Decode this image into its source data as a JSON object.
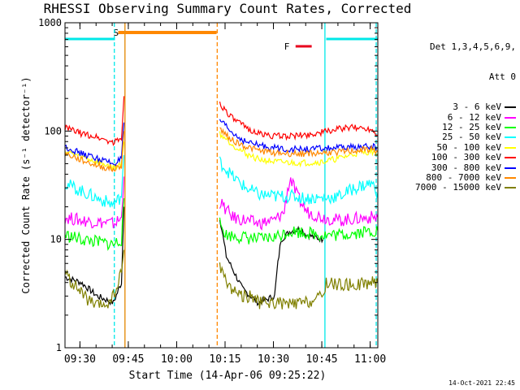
{
  "chart_data": {
    "type": "line",
    "title": "RHESSI Observing Summary Count Rates, Corrected",
    "xlabel": "Start Time (14-Apr-06 09:25:22)",
    "ylabel": "Corrected Count Rate (s⁻¹ detector⁻¹)",
    "x_unit": "minutes after 09:25:22",
    "xlim": [
      0,
      97
    ],
    "ylim": [
      1,
      1000
    ],
    "yscale": "log",
    "x_ticks": [
      "09:30",
      "09:45",
      "10:00",
      "10:15",
      "10:30",
      "10:45",
      "11:00"
    ],
    "y_ticks": [
      "1",
      "10",
      "100",
      "1000"
    ],
    "detectors": [
      "Det 1,3,4,5,6,9,",
      "Att 0"
    ],
    "flags": {
      "S": {
        "label": "S",
        "color": "#ff8800",
        "start": 16.5,
        "end": 47.0
      },
      "F": {
        "label": "F",
        "color": "#e8001c",
        "start": 71.5,
        "end": 76.5
      },
      "eclipse": {
        "color": "#00e8e8",
        "segments": [
          [
            0,
            15.5
          ],
          [
            81,
            97
          ]
        ]
      }
    },
    "vertical_lines": [
      {
        "x": 15.3,
        "color": "#00e8e8",
        "style": "dashed"
      },
      {
        "x": 18.6,
        "color": "#00e8e8",
        "style": "solid"
      },
      {
        "x": 18.6,
        "color": "#ff8800",
        "style": "solid"
      },
      {
        "x": 47.2,
        "color": "#ff8800",
        "style": "dashed"
      },
      {
        "x": 80.6,
        "color": "#00e8e8",
        "style": "solid"
      },
      {
        "x": 96.5,
        "color": "#00e8e8",
        "style": "dashed"
      }
    ],
    "series": [
      {
        "name": "3 - 6 keV",
        "color": "#000000",
        "x": [
          0,
          5,
          10,
          15,
          17.5,
          18.3,
          48,
          50,
          55,
          60,
          65,
          66,
          67,
          70,
          73,
          75,
          80
        ],
        "y": [
          4.5,
          4,
          3,
          2.6,
          4,
          20,
          16,
          7,
          3.5,
          2.6,
          3,
          6,
          10,
          12,
          12.5,
          11,
          10
        ]
      },
      {
        "name": "6 - 12 keV",
        "color": "#ff00ff",
        "x": [
          0,
          5,
          10,
          15,
          17.5,
          18.3,
          48,
          52,
          60,
          65,
          68,
          69,
          70,
          72,
          75,
          80,
          85,
          90,
          95,
          97
        ],
        "y": [
          16,
          15,
          14.5,
          14,
          15.5,
          38,
          22,
          16,
          14,
          15,
          18,
          29,
          36,
          25,
          18,
          16,
          15,
          15.5,
          16,
          16
        ],
        "noisy": true
      },
      {
        "name": "12 - 25 keV",
        "color": "#00ff00",
        "x": [
          0,
          5,
          10,
          15,
          17.5,
          18.3,
          48,
          50,
          55,
          60,
          65,
          70,
          75,
          80,
          85,
          90,
          95,
          97
        ],
        "y": [
          11,
          10,
          9.5,
          9,
          10,
          24,
          14,
          11,
          10.5,
          10,
          10.5,
          12,
          11.5,
          11,
          11,
          11.5,
          12,
          12
        ],
        "noisy": true
      },
      {
        "name": "25 - 50 keV",
        "color": "#00ffff",
        "x": [
          0,
          5,
          10,
          15,
          17.5,
          18.3,
          48,
          52,
          56,
          60,
          65,
          70,
          75,
          80,
          85,
          90,
          95,
          97
        ],
        "y": [
          33,
          28,
          24,
          21,
          25,
          60,
          52,
          38,
          30,
          26,
          25,
          25,
          24,
          24,
          25,
          30,
          33,
          27
        ],
        "noisy": true
      },
      {
        "name": "50 - 100 keV",
        "color": "#ffff00",
        "x": [
          0,
          5,
          10,
          15,
          17.5,
          18.3,
          48,
          52,
          56,
          60,
          65,
          70,
          75,
          80,
          85,
          90,
          95,
          97
        ],
        "y": [
          65,
          58,
          52,
          46,
          50,
          80,
          95,
          75,
          62,
          55,
          52,
          51,
          51,
          52,
          56,
          62,
          65,
          62
        ]
      },
      {
        "name": "100 - 300 keV",
        "color": "#ff0000",
        "x": [
          0,
          5,
          10,
          15,
          17.5,
          18.3,
          48,
          52,
          56,
          60,
          65,
          70,
          75,
          80,
          85,
          90,
          95,
          97
        ],
        "y": [
          108,
          95,
          88,
          78,
          86,
          210,
          180,
          130,
          108,
          95,
          90,
          90,
          92,
          98,
          105,
          108,
          105,
          92
        ]
      },
      {
        "name": "300 - 800 keV",
        "color": "#0000ff",
        "x": [
          0,
          5,
          10,
          15,
          17.5,
          18.3,
          48,
          52,
          56,
          60,
          65,
          70,
          75,
          80,
          85,
          90,
          95,
          97
        ],
        "y": [
          72,
          62,
          56,
          50,
          55,
          120,
          125,
          95,
          80,
          74,
          70,
          68,
          68,
          69,
          70,
          71,
          72,
          70
        ]
      },
      {
        "name": "800 - 7000 keV",
        "color": "#ff8800",
        "x": [
          0,
          5,
          10,
          15,
          17.5,
          18.3,
          48,
          52,
          56,
          60,
          65,
          70,
          75,
          80,
          85,
          90,
          95,
          97
        ],
        "y": [
          62,
          54,
          48,
          44,
          48,
          100,
          105,
          82,
          72,
          66,
          63,
          62,
          62,
          63,
          64,
          66,
          68,
          64
        ]
      },
      {
        "name": "7000 - 15000 keV",
        "color": "#808000",
        "x": [
          0,
          2,
          4,
          6,
          8,
          10,
          12,
          14,
          16,
          17.5,
          18.3,
          48,
          50,
          52,
          55,
          58,
          60,
          65,
          70,
          75,
          78,
          80,
          81,
          85,
          90,
          95,
          97
        ],
        "y": [
          5,
          4,
          3.5,
          3,
          2.6,
          2.4,
          2.5,
          2.6,
          3.5,
          5,
          8,
          6,
          4,
          3.5,
          3,
          3,
          2.6,
          2.6,
          2.5,
          2.6,
          2.8,
          3,
          4,
          3.8,
          3.8,
          4,
          4
        ],
        "noisy": true
      }
    ]
  },
  "footer": {
    "date": "14-Oct-2021 22:45"
  }
}
